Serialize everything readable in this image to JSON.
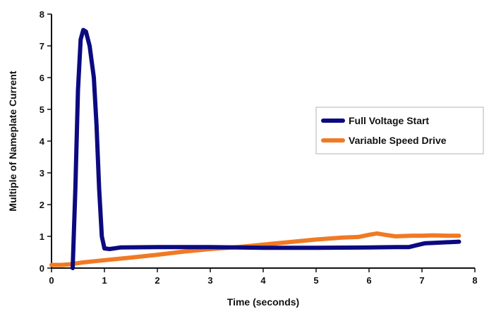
{
  "chart_data": {
    "type": "line",
    "title": "",
    "xlabel": "Time (seconds)",
    "ylabel": "Multiple of Nameplate Current",
    "xlim": [
      0,
      8
    ],
    "ylim": [
      0,
      8
    ],
    "xticks": [
      "0",
      "1",
      "2",
      "3",
      "4",
      "5",
      "6",
      "7",
      "8"
    ],
    "yticks": [
      "0",
      "1",
      "2",
      "3",
      "4",
      "5",
      "6",
      "7",
      "8"
    ],
    "grid": false,
    "legend_position": "right",
    "series": [
      {
        "name": "Full Voltage Start",
        "color": "#0b0a80",
        "points": [
          [
            0.4,
            0.0
          ],
          [
            0.45,
            2.5
          ],
          [
            0.5,
            5.6
          ],
          [
            0.55,
            7.2
          ],
          [
            0.6,
            7.5
          ],
          [
            0.65,
            7.45
          ],
          [
            0.72,
            7.0
          ],
          [
            0.8,
            6.0
          ],
          [
            0.85,
            4.5
          ],
          [
            0.9,
            2.5
          ],
          [
            0.95,
            1.0
          ],
          [
            1.0,
            0.62
          ],
          [
            1.1,
            0.6
          ],
          [
            1.3,
            0.65
          ],
          [
            2.0,
            0.66
          ],
          [
            3.0,
            0.66
          ],
          [
            4.0,
            0.64
          ],
          [
            5.0,
            0.64
          ],
          [
            6.0,
            0.65
          ],
          [
            6.5,
            0.66
          ],
          [
            6.75,
            0.66
          ],
          [
            6.9,
            0.72
          ],
          [
            7.05,
            0.78
          ],
          [
            7.3,
            0.8
          ],
          [
            7.7,
            0.83
          ]
        ]
      },
      {
        "name": "Variable Speed Drive",
        "color": "#f07a24",
        "points": [
          [
            0.0,
            0.1
          ],
          [
            0.2,
            0.1
          ],
          [
            0.35,
            0.12
          ],
          [
            0.6,
            0.18
          ],
          [
            1.0,
            0.25
          ],
          [
            1.5,
            0.33
          ],
          [
            2.0,
            0.42
          ],
          [
            2.5,
            0.52
          ],
          [
            3.0,
            0.6
          ],
          [
            3.5,
            0.66
          ],
          [
            4.0,
            0.74
          ],
          [
            4.5,
            0.82
          ],
          [
            5.0,
            0.9
          ],
          [
            5.5,
            0.96
          ],
          [
            5.8,
            0.98
          ],
          [
            6.0,
            1.05
          ],
          [
            6.15,
            1.09
          ],
          [
            6.3,
            1.05
          ],
          [
            6.5,
            1.0
          ],
          [
            6.8,
            1.02
          ],
          [
            7.0,
            1.02
          ],
          [
            7.2,
            1.03
          ],
          [
            7.5,
            1.02
          ],
          [
            7.7,
            1.02
          ]
        ]
      }
    ]
  }
}
